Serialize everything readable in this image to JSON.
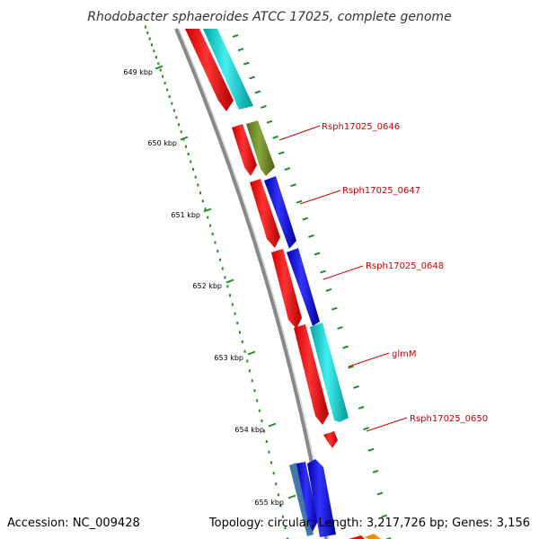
{
  "header": {
    "title": "Rhodobacter sphaeroides ATCC 17025, complete genome"
  },
  "footer": {
    "accession": "Accession: NC_009428",
    "summary": "Topology: circular; Length: 3,217,726 bp; Genes: 3,156"
  },
  "kbp_labels": [
    "649 kbp",
    "650 kbp",
    "651 kbp",
    "652 kbp",
    "653 kbp",
    "654 kbp",
    "655 kbp"
  ],
  "gene_labels": [
    "Rsph17025_0646",
    "Rsph17025_0647",
    "Rsph17025_0648",
    "glmM",
    "Rsph17025_0650"
  ],
  "colors": {
    "red": "#ff0000",
    "cyan": "#00cccc",
    "blue": "#0000ee",
    "olive": "#6b8e23",
    "steel": "#4477aa",
    "orange": "#ff8800",
    "backbone": "#888888",
    "tick": "#228B22",
    "label": "#cc0000"
  }
}
